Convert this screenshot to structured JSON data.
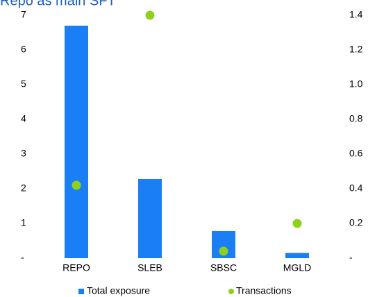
{
  "chart_data": {
    "type": "bar",
    "title": "Repo as main SFT",
    "categories": [
      "REPO",
      "SLEB",
      "SBSC",
      "MGLD"
    ],
    "series": [
      {
        "name": "Total exposure",
        "color": "#1a7ff5",
        "values": [
          6.7,
          2.28,
          0.78,
          0.15
        ]
      },
      {
        "name": "Transactions",
        "type": "scatter",
        "axis": "y2",
        "color": "#8fd11a",
        "values": [
          0.42,
          1.4,
          0.04,
          0.2
        ]
      }
    ],
    "ylim": [
      0,
      7
    ],
    "yticks": [
      {
        "value": 0,
        "label": "-"
      },
      1,
      2,
      3,
      4,
      5,
      6,
      7
    ],
    "y2lim": [
      0,
      1.4
    ],
    "y2ticks": [
      {
        "value": 0,
        "label": "-"
      },
      0.2,
      0.4,
      0.6,
      0.8,
      {
        "value": 1.0,
        "label": "1.0"
      },
      1.2,
      1.4
    ],
    "grid": false
  }
}
